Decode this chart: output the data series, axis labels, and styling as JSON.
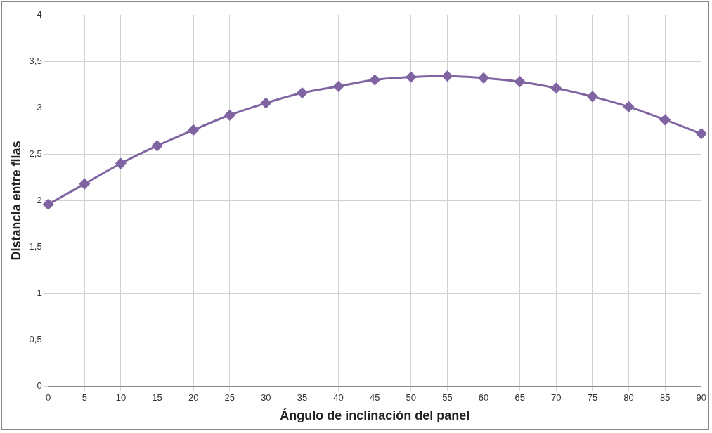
{
  "chart_data": {
    "type": "line",
    "xlabel": "Ángulo de inclinación del panel",
    "ylabel": "Distancia entre filas",
    "x": [
      0,
      5,
      10,
      15,
      20,
      25,
      30,
      35,
      40,
      45,
      50,
      55,
      60,
      65,
      70,
      75,
      80,
      85,
      90
    ],
    "series": [
      {
        "color": "#8064a2",
        "values": [
          1.96,
          2.18,
          2.4,
          2.59,
          2.76,
          2.92,
          3.05,
          3.16,
          3.23,
          3.3,
          3.33,
          3.34,
          3.32,
          3.28,
          3.21,
          3.12,
          3.01,
          2.87,
          2.72
        ]
      }
    ],
    "xlim": [
      0,
      90
    ],
    "xticks": [
      0,
      5,
      10,
      15,
      20,
      25,
      30,
      35,
      40,
      45,
      50,
      55,
      60,
      65,
      70,
      75,
      80,
      85,
      90
    ],
    "ylim": [
      0,
      4
    ],
    "yticks": [
      0,
      {
        "value": 0.5,
        "label": "0,5"
      },
      1,
      {
        "value": 1.5,
        "label": "1,5"
      },
      2,
      {
        "value": 2.5,
        "label": "2,5"
      },
      3,
      {
        "value": 3.5,
        "label": "3,5"
      },
      4
    ],
    "grid": true,
    "legend": false,
    "marker": "diamond",
    "line_style": "solid"
  }
}
